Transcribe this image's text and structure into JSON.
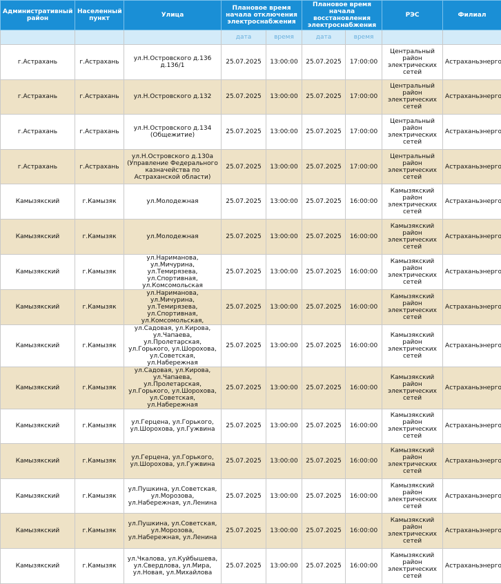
{
  "header": {
    "columns": [
      "Административный район",
      "Населенный пункт",
      "Улица",
      "Плановое время начала отключения электроснабжения",
      "Плановое время начала восстановления электроснабжения",
      "РЭС",
      "Филиал"
    ],
    "subcolumns": [
      "дата",
      "время",
      "дата",
      "время"
    ]
  },
  "table": {
    "rows": [
      [
        "г.Астрахань",
        "г.Астрахань",
        "ул.Н.Островского д.136 д.136/1",
        "25.07.2025",
        "13:00:00",
        "25.07.2025",
        "17:00:00",
        "Центральный район электрических сетей",
        "Астраханьэнерго"
      ],
      [
        "г.Астрахань",
        "г.Астрахань",
        "ул.Н.Островского д.132",
        "25.07.2025",
        "13:00:00",
        "25.07.2025",
        "17:00:00",
        "Центральный район электрических сетей",
        "Астраханьэнерго"
      ],
      [
        "г.Астрахань",
        "г.Астрахань",
        "ул.Н.Островского д.134 (Общежитие)",
        "25.07.2025",
        "13:00:00",
        "25.07.2025",
        "17:00:00",
        "Центральный район электрических сетей",
        "Астраханьэнерго"
      ],
      [
        "г.Астрахань",
        "г.Астрахань",
        "ул.Н.Островского д.130а (Управление Федерального казначейства по Астраханской области)",
        "25.07.2025",
        "13:00:00",
        "25.07.2025",
        "17:00:00",
        "Центральный район электрических сетей",
        "Астраханьэнерго"
      ],
      [
        "Камызякский",
        "г.Камызяк",
        "ул.Молодежная",
        "25.07.2025",
        "13:00:00",
        "25.07.2025",
        "16:00:00",
        "Камызякский район электрических сетей",
        "Астраханьэнерго"
      ],
      [
        "Камызякский",
        "г.Камызяк",
        "ул.Молодежная",
        "25.07.2025",
        "13:00:00",
        "25.07.2025",
        "16:00:00",
        "Камызякский район электрических сетей",
        "Астраханьэнерго"
      ],
      [
        "Камызякский",
        "г.Камызяк",
        "ул.Нариманова, ул.Мичурина, ул.Темирязева, ул.Спортивная, ул.Комсомольская",
        "25.07.2025",
        "13:00:00",
        "25.07.2025",
        "16:00:00",
        "Камызякский район электрических сетей",
        "Астраханьэнерго"
      ],
      [
        "Камызякский",
        "г.Камызяк",
        "ул.Нариманова, ул.Мичурина, ул.Темирязева, ул.Спортивная, ул.Комсомольская,",
        "25.07.2025",
        "13:00:00",
        "25.07.2025",
        "16:00:00",
        "Камызякский район электрических сетей",
        "Астраханьэнерго"
      ],
      [
        "Камызякский",
        "г.Камызяк",
        "ул.Садовая, ул.Кирова, ул.Чапаева, ул.Пролетарская, ул.Горького, ул.Шорохова, ул.Советская, ул.Набережная",
        "25.07.2025",
        "13:00:00",
        "25.07.2025",
        "16:00:00",
        "Камызякский район электрических сетей",
        "Астраханьэнерго"
      ],
      [
        "Камызякский",
        "г.Камызяк",
        "ул.Садовая, ул.Кирова, ул.Чапаева, ул.Пролетарская, ул.Горького, ул.Шорохова, ул.Советская, ул.Набережная",
        "25.07.2025",
        "13:00:00",
        "25.07.2025",
        "16:00:00",
        "Камызякский район электрических сетей",
        "Астраханьэнерго"
      ],
      [
        "Камызякский",
        "г.Камызяк",
        "ул.Герцена, ул.Горького, ул.Шорохова, ул.Гужвина",
        "25.07.2025",
        "13:00:00",
        "25.07.2025",
        "16:00:00",
        "Камызякский район электрических сетей",
        "Астраханьэнерго"
      ],
      [
        "Камызякский",
        "г.Камызяк",
        "ул.Герцена, ул.Горького, ул.Шорохова, ул.Гужвина",
        "25.07.2025",
        "13:00:00",
        "25.07.2025",
        "16:00:00",
        "Камызякский район электрических сетей",
        "Астраханьэнерго"
      ],
      [
        "Камызякский",
        "г.Камызяк",
        "ул.Пушкина, ул.Советская, ул.Морозова, ул.Набережная, ул.Ленина",
        "25.07.2025",
        "13:00:00",
        "25.07.2025",
        "16:00:00",
        "Камызякский район электрических сетей",
        "Астраханьэнерго"
      ],
      [
        "Камызякский",
        "г.Камызяк",
        "ул.Пушкина, ул.Советская, ул.Морозова, ул.Набережная, ул.Ленина",
        "25.07.2025",
        "13:00:00",
        "25.07.2025",
        "16:00:00",
        "Камызякский район электрических сетей",
        "Астраханьэнерго"
      ],
      [
        "Камызякский",
        "г.Камызяк",
        "ул.Чкалова, ул.Куйбышева, ул.Свердлова, ул.Мира, ул.Новая, ул.Михайлова",
        "25.07.2025",
        "13:00:00",
        "25.07.2025",
        "16:00:00",
        "Камызякский район электрических сетей",
        "Астраханьэнерго"
      ]
    ]
  }
}
